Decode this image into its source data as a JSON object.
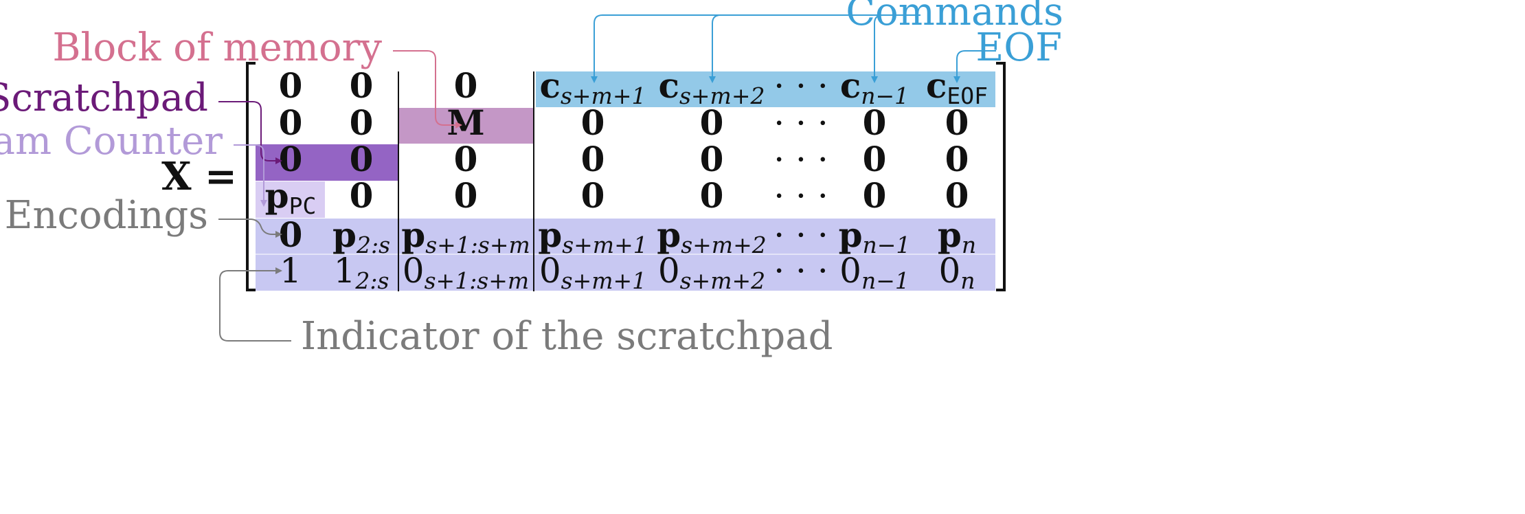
{
  "colors": {
    "commands": "#3a9fd6",
    "commands_fill": "#93c9e8",
    "memory": "#d4708f",
    "memory_fill": "#c497c6",
    "scratchpad": "#6b1a78",
    "scratchpad_fill": "#9464c4",
    "program_counter": "#b29ad8",
    "pc_fill": "#d9cdf3",
    "encodings": "#7b7b7b",
    "encodings_fill": "#c8c8f2",
    "indicator": "#7b7b7b"
  },
  "annotations": {
    "commands": "Commands",
    "eof": "EOF",
    "block_of_memory": "Block of memory",
    "scratchpad": "Scratchpad",
    "program_counter": "Program Counter",
    "encodings": "Encodings",
    "indicator": "Indicator of the scratchpad"
  },
  "matrix": {
    "lhs": "X =",
    "rows": [
      [
        {
          "b": "0",
          "bold": true
        },
        {
          "b": "0",
          "bold": true
        },
        {
          "b": "0",
          "bold": true
        },
        {
          "b": "c",
          "s": "s+m+1",
          "bold": true
        },
        {
          "b": "c",
          "s": "s+m+2",
          "bold": true
        },
        {
          "b": "· · ·",
          "bold": false
        },
        {
          "b": "c",
          "s": "n−1",
          "bold": true
        },
        {
          "b": "c",
          "s": "EOF",
          "bold": true,
          "mono": true
        }
      ],
      [
        {
          "b": "0",
          "bold": true
        },
        {
          "b": "0",
          "bold": true
        },
        {
          "b": "M",
          "bold": true
        },
        {
          "b": "0",
          "bold": true
        },
        {
          "b": "0",
          "bold": true
        },
        {
          "b": "· · ·",
          "bold": false
        },
        {
          "b": "0",
          "bold": true
        },
        {
          "b": "0",
          "bold": true
        }
      ],
      [
        {
          "b": "0",
          "bold": true
        },
        {
          "b": "0",
          "bold": true
        },
        {
          "b": "0",
          "bold": true
        },
        {
          "b": "0",
          "bold": true
        },
        {
          "b": "0",
          "bold": true
        },
        {
          "b": "· · ·",
          "bold": false
        },
        {
          "b": "0",
          "bold": true
        },
        {
          "b": "0",
          "bold": true
        }
      ],
      [
        {
          "b": "p",
          "s": "PC",
          "bold": true,
          "mono": true
        },
        {
          "b": "0",
          "bold": true
        },
        {
          "b": "0",
          "bold": true
        },
        {
          "b": "0",
          "bold": true
        },
        {
          "b": "0",
          "bold": true
        },
        {
          "b": "· · ·",
          "bold": false
        },
        {
          "b": "0",
          "bold": true
        },
        {
          "b": "0",
          "bold": true
        }
      ],
      [
        {
          "b": "0",
          "bold": true
        },
        {
          "b": "p",
          "s": "2:s",
          "bold": true
        },
        {
          "b": "p",
          "s": "s+1:s+m",
          "bold": true
        },
        {
          "b": "p",
          "s": "s+m+1",
          "bold": true
        },
        {
          "b": "p",
          "s": "s+m+2",
          "bold": true
        },
        {
          "b": "· · ·",
          "bold": false
        },
        {
          "b": "p",
          "s": "n−1",
          "bold": true
        },
        {
          "b": "p",
          "s": "n",
          "bold": true
        }
      ],
      [
        {
          "b": "1",
          "bold": false
        },
        {
          "b": "1",
          "s": "2:s",
          "bold": false
        },
        {
          "b": "0",
          "s": "s+1:s+m",
          "bold": false
        },
        {
          "b": "0",
          "s": "s+m+1",
          "bold": false
        },
        {
          "b": "0",
          "s": "s+m+2",
          "bold": false
        },
        {
          "b": "· · ·",
          "bold": false
        },
        {
          "b": "0",
          "s": "n−1",
          "bold": false
        },
        {
          "b": "0",
          "s": "n",
          "bold": false
        }
      ]
    ]
  }
}
